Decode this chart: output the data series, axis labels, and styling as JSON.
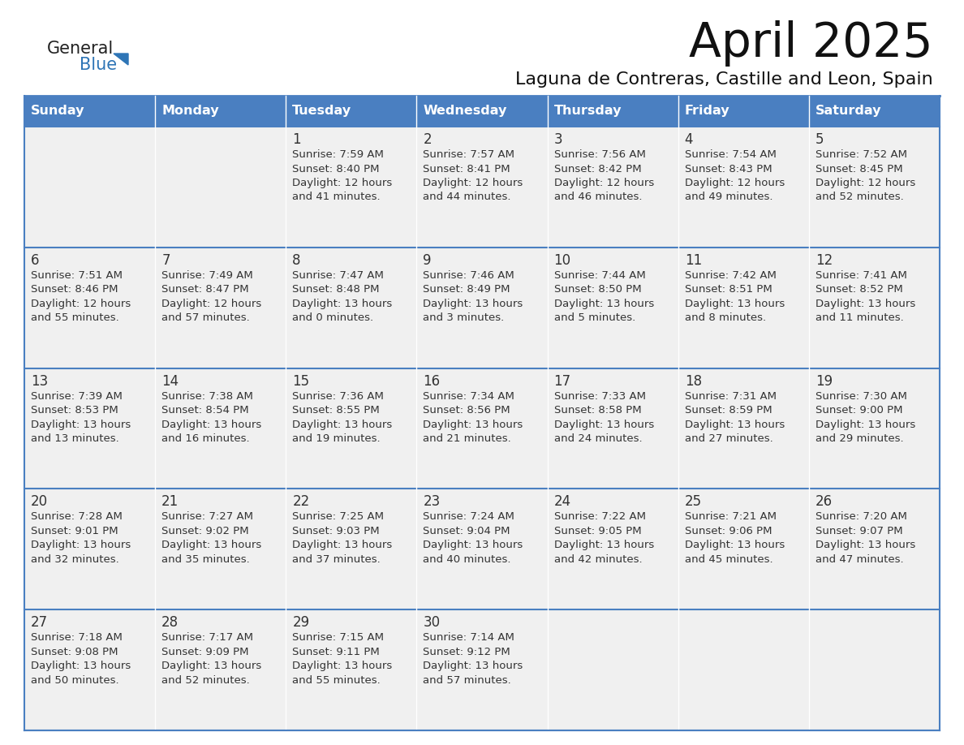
{
  "title": "April 2025",
  "subtitle": "Laguna de Contreras, Castille and Leon, Spain",
  "days_of_week": [
    "Sunday",
    "Monday",
    "Tuesday",
    "Wednesday",
    "Thursday",
    "Friday",
    "Saturday"
  ],
  "header_bg": "#4a7fc1",
  "header_text_color": "#FFFFFF",
  "cell_bg": "#f0f0f0",
  "border_color": "#4a7fc1",
  "text_color": "#333333",
  "logo_general_color": "#222222",
  "logo_blue_color": "#2E75B6",
  "calendar": [
    [
      {
        "day": "",
        "info": ""
      },
      {
        "day": "",
        "info": ""
      },
      {
        "day": "1",
        "info": "Sunrise: 7:59 AM\nSunset: 8:40 PM\nDaylight: 12 hours\nand 41 minutes."
      },
      {
        "day": "2",
        "info": "Sunrise: 7:57 AM\nSunset: 8:41 PM\nDaylight: 12 hours\nand 44 minutes."
      },
      {
        "day": "3",
        "info": "Sunrise: 7:56 AM\nSunset: 8:42 PM\nDaylight: 12 hours\nand 46 minutes."
      },
      {
        "day": "4",
        "info": "Sunrise: 7:54 AM\nSunset: 8:43 PM\nDaylight: 12 hours\nand 49 minutes."
      },
      {
        "day": "5",
        "info": "Sunrise: 7:52 AM\nSunset: 8:45 PM\nDaylight: 12 hours\nand 52 minutes."
      }
    ],
    [
      {
        "day": "6",
        "info": "Sunrise: 7:51 AM\nSunset: 8:46 PM\nDaylight: 12 hours\nand 55 minutes."
      },
      {
        "day": "7",
        "info": "Sunrise: 7:49 AM\nSunset: 8:47 PM\nDaylight: 12 hours\nand 57 minutes."
      },
      {
        "day": "8",
        "info": "Sunrise: 7:47 AM\nSunset: 8:48 PM\nDaylight: 13 hours\nand 0 minutes."
      },
      {
        "day": "9",
        "info": "Sunrise: 7:46 AM\nSunset: 8:49 PM\nDaylight: 13 hours\nand 3 minutes."
      },
      {
        "day": "10",
        "info": "Sunrise: 7:44 AM\nSunset: 8:50 PM\nDaylight: 13 hours\nand 5 minutes."
      },
      {
        "day": "11",
        "info": "Sunrise: 7:42 AM\nSunset: 8:51 PM\nDaylight: 13 hours\nand 8 minutes."
      },
      {
        "day": "12",
        "info": "Sunrise: 7:41 AM\nSunset: 8:52 PM\nDaylight: 13 hours\nand 11 minutes."
      }
    ],
    [
      {
        "day": "13",
        "info": "Sunrise: 7:39 AM\nSunset: 8:53 PM\nDaylight: 13 hours\nand 13 minutes."
      },
      {
        "day": "14",
        "info": "Sunrise: 7:38 AM\nSunset: 8:54 PM\nDaylight: 13 hours\nand 16 minutes."
      },
      {
        "day": "15",
        "info": "Sunrise: 7:36 AM\nSunset: 8:55 PM\nDaylight: 13 hours\nand 19 minutes."
      },
      {
        "day": "16",
        "info": "Sunrise: 7:34 AM\nSunset: 8:56 PM\nDaylight: 13 hours\nand 21 minutes."
      },
      {
        "day": "17",
        "info": "Sunrise: 7:33 AM\nSunset: 8:58 PM\nDaylight: 13 hours\nand 24 minutes."
      },
      {
        "day": "18",
        "info": "Sunrise: 7:31 AM\nSunset: 8:59 PM\nDaylight: 13 hours\nand 27 minutes."
      },
      {
        "day": "19",
        "info": "Sunrise: 7:30 AM\nSunset: 9:00 PM\nDaylight: 13 hours\nand 29 minutes."
      }
    ],
    [
      {
        "day": "20",
        "info": "Sunrise: 7:28 AM\nSunset: 9:01 PM\nDaylight: 13 hours\nand 32 minutes."
      },
      {
        "day": "21",
        "info": "Sunrise: 7:27 AM\nSunset: 9:02 PM\nDaylight: 13 hours\nand 35 minutes."
      },
      {
        "day": "22",
        "info": "Sunrise: 7:25 AM\nSunset: 9:03 PM\nDaylight: 13 hours\nand 37 minutes."
      },
      {
        "day": "23",
        "info": "Sunrise: 7:24 AM\nSunset: 9:04 PM\nDaylight: 13 hours\nand 40 minutes."
      },
      {
        "day": "24",
        "info": "Sunrise: 7:22 AM\nSunset: 9:05 PM\nDaylight: 13 hours\nand 42 minutes."
      },
      {
        "day": "25",
        "info": "Sunrise: 7:21 AM\nSunset: 9:06 PM\nDaylight: 13 hours\nand 45 minutes."
      },
      {
        "day": "26",
        "info": "Sunrise: 7:20 AM\nSunset: 9:07 PM\nDaylight: 13 hours\nand 47 minutes."
      }
    ],
    [
      {
        "day": "27",
        "info": "Sunrise: 7:18 AM\nSunset: 9:08 PM\nDaylight: 13 hours\nand 50 minutes."
      },
      {
        "day": "28",
        "info": "Sunrise: 7:17 AM\nSunset: 9:09 PM\nDaylight: 13 hours\nand 52 minutes."
      },
      {
        "day": "29",
        "info": "Sunrise: 7:15 AM\nSunset: 9:11 PM\nDaylight: 13 hours\nand 55 minutes."
      },
      {
        "day": "30",
        "info": "Sunrise: 7:14 AM\nSunset: 9:12 PM\nDaylight: 13 hours\nand 57 minutes."
      },
      {
        "day": "",
        "info": ""
      },
      {
        "day": "",
        "info": ""
      },
      {
        "day": "",
        "info": ""
      }
    ]
  ]
}
